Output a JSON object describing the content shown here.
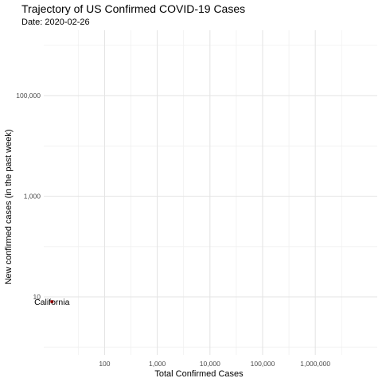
{
  "chart_data": {
    "type": "scatter",
    "title": "Trajectory of US Confirmed COVID-19 Cases",
    "subtitle": "Date: 2020-02-26",
    "xlabel": "Total Confirmed Cases",
    "ylabel": "New confirmed cases (in the past week)",
    "x_scale": "log10",
    "y_scale": "log10",
    "xlim": [
      7,
      15000000
    ],
    "ylim": [
      0.7,
      2000000
    ],
    "x_ticks": [
      {
        "value": 100,
        "label": "100"
      },
      {
        "value": 1000,
        "label": "1,000"
      },
      {
        "value": 10000,
        "label": "10,000"
      },
      {
        "value": 100000,
        "label": "100,000"
      },
      {
        "value": 1000000,
        "label": "1,000,000"
      }
    ],
    "y_ticks": [
      {
        "value": 10,
        "label": "10"
      },
      {
        "value": 1000,
        "label": "1,000"
      },
      {
        "value": 100000,
        "label": "100,000"
      }
    ],
    "grid": true,
    "legend": "none",
    "points": [
      {
        "label": "California",
        "x": 10,
        "y": 8,
        "color": "#cc0000"
      }
    ]
  }
}
